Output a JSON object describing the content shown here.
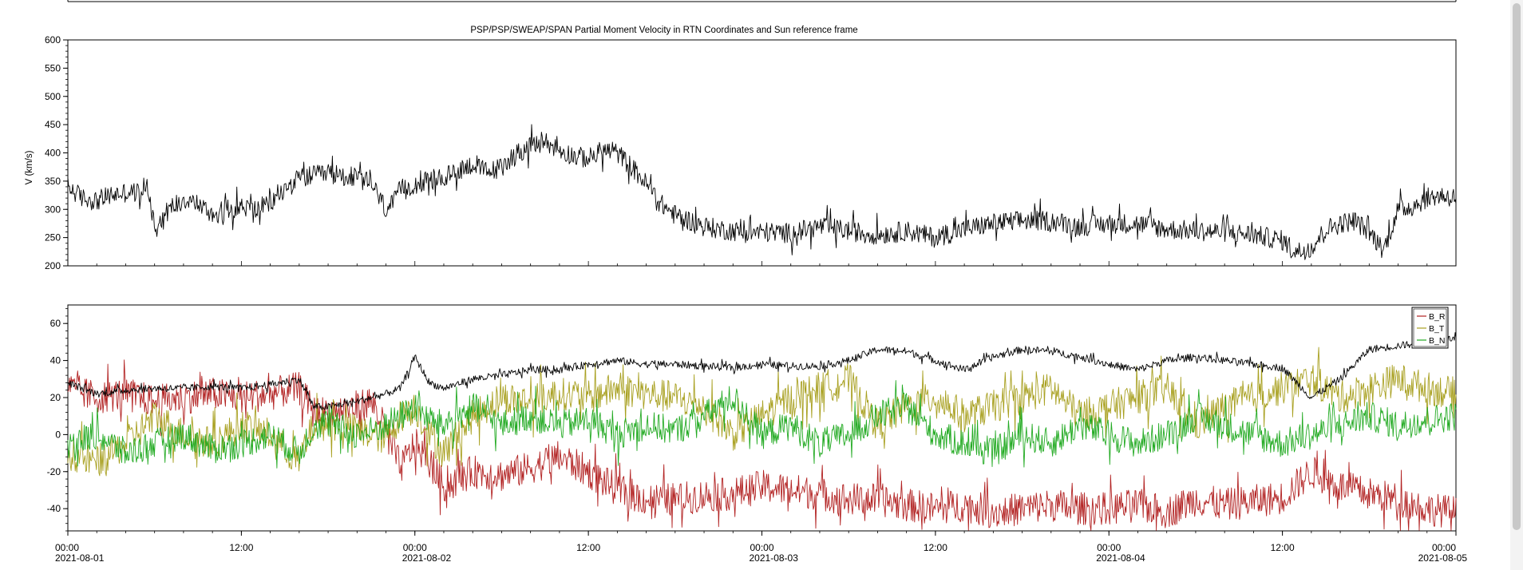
{
  "chart_data": [
    {
      "type": "line",
      "title": "PSP/PSP/SWEAP/SPAN  Partial Moment Velocity in RTN Coordinates and Sun reference frame",
      "xlabel": "",
      "ylabel": "V (km/s)",
      "ylim": [
        200,
        600
      ],
      "yticks": [
        200,
        250,
        300,
        350,
        400,
        450,
        500,
        550,
        600
      ],
      "xlim_hours": [
        0,
        96
      ],
      "grid": false,
      "series": [
        {
          "color": "#000000",
          "x_hours": [
            0,
            1,
            2,
            3,
            4,
            5,
            5.5,
            6,
            7,
            8,
            9,
            10,
            11,
            12,
            13,
            14,
            15,
            16,
            17,
            18,
            19,
            20,
            21,
            22,
            22.5,
            23,
            24,
            25,
            26,
            27,
            28,
            29,
            30,
            31,
            32,
            33,
            34,
            35,
            36,
            37,
            38,
            39,
            40,
            41,
            42,
            43,
            44,
            45,
            46,
            47,
            48,
            50,
            52,
            54,
            56,
            58,
            60,
            62,
            64,
            66,
            68,
            70,
            72,
            74,
            76,
            78,
            80,
            82,
            84,
            85,
            86,
            87,
            88,
            89,
            90,
            91,
            92,
            93,
            94,
            95,
            96
          ],
          "values": [
            340,
            320,
            315,
            325,
            330,
            330,
            345,
            270,
            300,
            320,
            310,
            290,
            300,
            305,
            300,
            310,
            335,
            355,
            360,
            362,
            360,
            355,
            345,
            300,
            310,
            335,
            345,
            350,
            355,
            370,
            380,
            365,
            375,
            400,
            410,
            420,
            405,
            395,
            390,
            405,
            400,
            375,
            345,
            310,
            290,
            280,
            270,
            265,
            262,
            258,
            260,
            258,
            270,
            262,
            255,
            262,
            250,
            265,
            275,
            280,
            280,
            270,
            275,
            275,
            265,
            262,
            260,
            255,
            245,
            225,
            232,
            265,
            275,
            280,
            260,
            228,
            300,
            305,
            320,
            325,
            320
          ]
        }
      ]
    },
    {
      "type": "line",
      "title": "",
      "xlabel": "",
      "ylabel": "",
      "ylim": [
        -52,
        70
      ],
      "yticks": [
        -40,
        -20,
        0,
        20,
        40,
        60
      ],
      "xlim_hours": [
        0,
        96
      ],
      "x_tick_times": [
        "00:00",
        "12:00",
        "00:00",
        "12:00",
        "00:00",
        "12:00",
        "00:00",
        "12:00",
        "00:00"
      ],
      "x_tick_dates": [
        "2021-08-01",
        "",
        "2021-08-02",
        "",
        "2021-08-03",
        "",
        "2021-08-04",
        "",
        "2021-08-05"
      ],
      "grid": false,
      "legend_position": "top-right",
      "series": [
        {
          "name": "B_R",
          "color": "#b22222",
          "x_hours": [
            0,
            2,
            4,
            6,
            8,
            10,
            12,
            14,
            16,
            17,
            18,
            20,
            21,
            22,
            23,
            24,
            25,
            26,
            28,
            30,
            32,
            34,
            36,
            38,
            40,
            42,
            44,
            46,
            48,
            50,
            52,
            54,
            56,
            58,
            60,
            62,
            64,
            66,
            68,
            70,
            72,
            74,
            76,
            78,
            80,
            82,
            84,
            86,
            88,
            90,
            92,
            94,
            96
          ],
          "values": [
            25,
            20,
            22,
            18,
            20,
            22,
            20,
            22,
            25,
            12,
            12,
            15,
            18,
            2,
            -18,
            -5,
            -15,
            -28,
            -20,
            -22,
            -18,
            -12,
            -20,
            -30,
            -35,
            -35,
            -33,
            -32,
            -28,
            -30,
            -32,
            -35,
            -35,
            -38,
            -40,
            -38,
            -42,
            -40,
            -38,
            -40,
            -40,
            -38,
            -42,
            -35,
            -38,
            -36,
            -34,
            -20,
            -28,
            -32,
            -35,
            -40,
            -42
          ]
        },
        {
          "name": "B_T",
          "color": "#a8a020",
          "x_hours": [
            0,
            2,
            4,
            6,
            8,
            10,
            12,
            14,
            16,
            17,
            18,
            20,
            21,
            22,
            23,
            24,
            25,
            26,
            28,
            30,
            32,
            34,
            36,
            38,
            40,
            42,
            44,
            46,
            48,
            50,
            52,
            54,
            56,
            58,
            60,
            62,
            64,
            66,
            68,
            70,
            72,
            74,
            76,
            78,
            80,
            82,
            84,
            86,
            88,
            90,
            92,
            94,
            96
          ],
          "values": [
            -10,
            -15,
            -5,
            10,
            0,
            -5,
            5,
            0,
            -15,
            5,
            6,
            2,
            0,
            -2,
            10,
            15,
            0,
            -10,
            10,
            20,
            18,
            22,
            20,
            25,
            22,
            20,
            15,
            0,
            10,
            20,
            25,
            30,
            5,
            15,
            20,
            10,
            15,
            20,
            25,
            10,
            15,
            20,
            25,
            5,
            15,
            20,
            25,
            30,
            20,
            25,
            30,
            25,
            22
          ]
        },
        {
          "name": "B_N",
          "color": "#22aa22",
          "x_hours": [
            0,
            2,
            4,
            6,
            8,
            10,
            12,
            14,
            16,
            17,
            18,
            20,
            21,
            22,
            23,
            24,
            25,
            26,
            28,
            30,
            32,
            34,
            36,
            38,
            40,
            42,
            44,
            46,
            48,
            50,
            52,
            54,
            56,
            58,
            60,
            62,
            64,
            66,
            68,
            70,
            72,
            74,
            76,
            78,
            80,
            82,
            84,
            86,
            88,
            90,
            92,
            94,
            96
          ],
          "values": [
            -5,
            0,
            -10,
            -5,
            0,
            -8,
            -5,
            0,
            -10,
            5,
            6,
            0,
            2,
            5,
            10,
            15,
            8,
            5,
            15,
            5,
            10,
            5,
            8,
            0,
            5,
            2,
            10,
            20,
            0,
            5,
            -5,
            0,
            10,
            15,
            0,
            -5,
            -10,
            0,
            -5,
            5,
            0,
            -5,
            0,
            10,
            5,
            0,
            -5,
            0,
            5,
            10,
            5,
            8,
            10
          ]
        },
        {
          "name": "",
          "color": "#000000",
          "x_hours": [
            0,
            2,
            4,
            6,
            8,
            10,
            12,
            14,
            16,
            17,
            18,
            20,
            21,
            22,
            23,
            24,
            25,
            26,
            28,
            30,
            32,
            34,
            36,
            38,
            40,
            42,
            44,
            46,
            48,
            50,
            52,
            54,
            56,
            58,
            60,
            62,
            64,
            66,
            68,
            70,
            72,
            74,
            76,
            78,
            80,
            82,
            84,
            86,
            88,
            90,
            92,
            94,
            96
          ],
          "values": [
            28,
            22,
            24,
            25,
            25,
            26,
            25,
            27,
            30,
            15,
            15,
            18,
            20,
            22,
            25,
            42,
            28,
            25,
            30,
            32,
            35,
            35,
            38,
            40,
            38,
            38,
            37,
            36,
            38,
            37,
            37,
            40,
            46,
            45,
            40,
            35,
            42,
            46,
            45,
            42,
            38,
            35,
            40,
            42,
            40,
            38,
            36,
            20,
            30,
            46,
            48,
            50,
            52
          ]
        }
      ]
    }
  ]
}
